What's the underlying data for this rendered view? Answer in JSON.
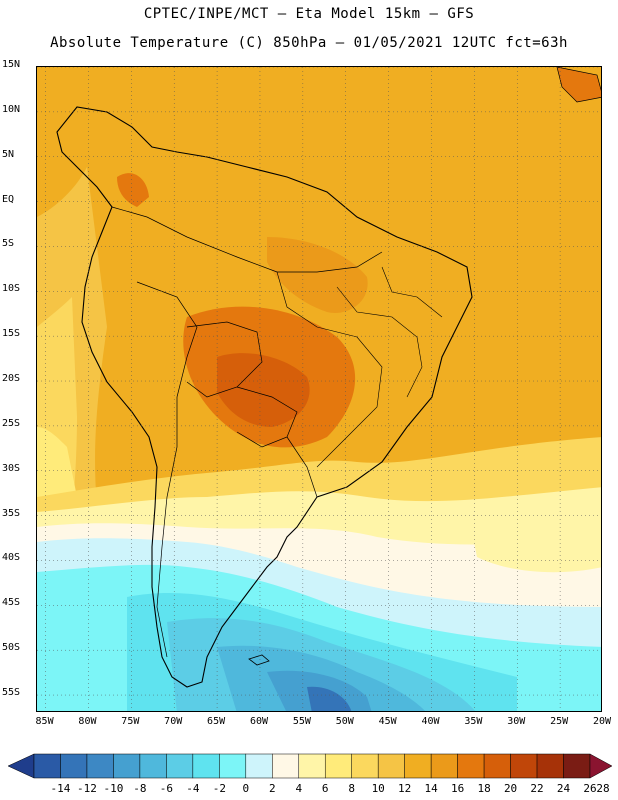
{
  "header": {
    "title_line1": "CPTEC/INPE/MCT –  Eta Model 15km – GFS",
    "title_line2": "Absolute Temperature (C) 850hPa – 01/05/2021 12UTC fct=63h"
  },
  "map": {
    "lat_labels": [
      "15N",
      "10N",
      "5N",
      "EQ",
      "5S",
      "10S",
      "15S",
      "20S",
      "25S",
      "30S",
      "35S",
      "40S",
      "45S",
      "50S",
      "55S"
    ],
    "lon_labels": [
      "85W",
      "80W",
      "75W",
      "70W",
      "65W",
      "60W",
      "55W",
      "50W",
      "45W",
      "40W",
      "35W",
      "30W",
      "25W",
      "20W"
    ],
    "lat_range": [
      15,
      -57
    ],
    "lon_range": [
      -86,
      -20
    ],
    "grid": true
  },
  "colorbar": {
    "ticks": [
      "-14",
      "-12",
      "-10",
      "-8",
      "-6",
      "-4",
      "-2",
      "0",
      "2",
      "4",
      "6",
      "8",
      "10",
      "12",
      "14",
      "16",
      "18",
      "20",
      "22",
      "24",
      "26",
      "28"
    ],
    "colors": [
      "#1f3d8c",
      "#2a5aa6",
      "#3474b8",
      "#3d88c4",
      "#45a0d0",
      "#4fb8dc",
      "#5ccde6",
      "#5fe3ef",
      "#7cf5f7",
      "#cef4fb",
      "#fff8e6",
      "#fff5a8",
      "#ffeb7a",
      "#fbd85e",
      "#f5c445",
      "#f0ae22",
      "#eb9a1a",
      "#e4780e",
      "#d65f0a",
      "#c04609",
      "#a63208",
      "#7a1c14",
      "#8a1430"
    ]
  }
}
